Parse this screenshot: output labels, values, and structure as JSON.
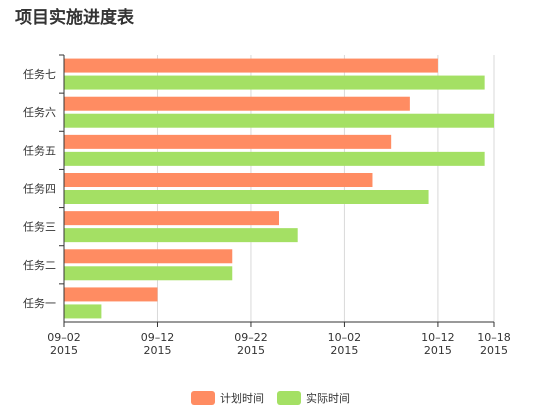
{
  "chart_data": {
    "type": "bar",
    "orientation": "horizontal",
    "title": "项目实施进度表",
    "categories": [
      "任务一",
      "任务二",
      "任务三",
      "任务四",
      "任务五",
      "任务六",
      "任务七"
    ],
    "series": [
      {
        "name": "计划时间",
        "color": "#ff8c62",
        "values": [
          "2015-09-12",
          "2015-09-20",
          "2015-09-25",
          "2015-10-05",
          "2015-10-07",
          "2015-10-09",
          "2015-10-12"
        ]
      },
      {
        "name": "实际时间",
        "color": "#a4e064",
        "values": [
          "2015-09-06",
          "2015-09-20",
          "2015-09-27",
          "2015-10-11",
          "2015-10-17",
          "2015-10-18",
          "2015-10-17"
        ]
      }
    ],
    "xaxis": {
      "min": "2015-09-02",
      "max": "2015-10-18",
      "ticks": [
        {
          "date": "2015-09-02",
          "line1": "09–02",
          "line2": "2015"
        },
        {
          "date": "2015-09-12",
          "line1": "09–12",
          "line2": "2015"
        },
        {
          "date": "2015-09-22",
          "line1": "09–22",
          "line2": "2015"
        },
        {
          "date": "2015-10-02",
          "line1": "10–02",
          "line2": "2015"
        },
        {
          "date": "2015-10-12",
          "line1": "10–12",
          "line2": "2015"
        },
        {
          "date": "2015-10-18",
          "line1": "10–18",
          "line2": "2015"
        }
      ]
    },
    "grid": true,
    "legend_position": "bottom-center"
  }
}
